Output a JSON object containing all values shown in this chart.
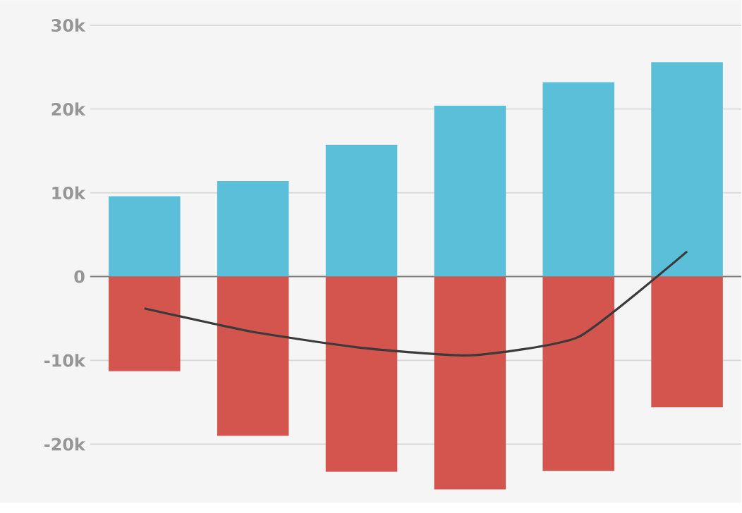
{
  "chart_data": {
    "type": "bar",
    "categories": [
      null,
      null,
      null,
      null,
      null,
      null
    ],
    "series": [
      {
        "color": "#5bbfd9",
        "values": [
          9600,
          11400,
          15700,
          20400,
          23200,
          25600
        ]
      },
      {
        "color": "#d4544e",
        "values": [
          -11300,
          -19000,
          -23300,
          -25400,
          -23200,
          -15600
        ]
      },
      {
        "type": "line",
        "color": "#3a3a3a",
        "values": [
          -3800,
          -6600,
          -8500,
          -9400,
          -7200,
          3000
        ]
      }
    ],
    "ylim": [
      -27000,
      33000
    ],
    "yticks": [
      {
        "value": -20000,
        "label": "-20k"
      },
      {
        "value": -10000,
        "label": "-10k"
      },
      0,
      {
        "value": 10000,
        "label": "10k"
      },
      {
        "value": 20000,
        "label": "20k"
      },
      {
        "value": 30000,
        "label": "30k"
      }
    ],
    "stacked": true,
    "grid": "y",
    "tick_labels": "y",
    "marker": "none",
    "line_style": "solid"
  }
}
